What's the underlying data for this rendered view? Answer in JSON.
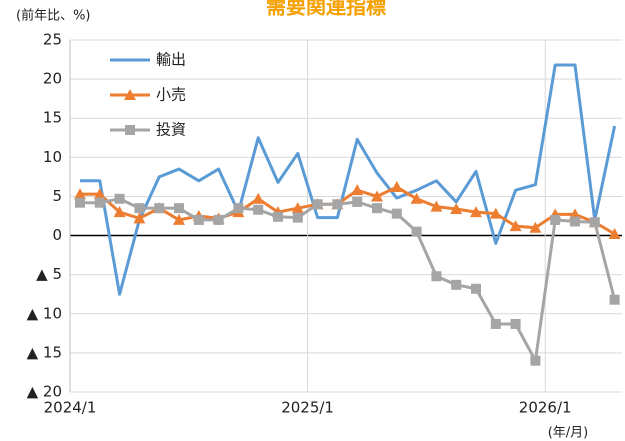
{
  "chart_data": {
    "type": "line",
    "title": "需要関連指標",
    "y_label": "(前年比、%)",
    "x_label": "(年/月)",
    "categories": [
      "2024/1",
      null,
      null,
      null,
      null,
      null,
      null,
      null,
      null,
      null,
      null,
      null,
      "2025/1",
      null,
      null,
      null,
      null,
      null,
      null,
      null,
      null,
      null,
      null,
      null,
      "2026/1",
      null,
      null,
      null
    ],
    "series": [
      {
        "name": "輸出",
        "color": "#5b9bd5",
        "marker": "none",
        "values": [
          7,
          7,
          -7.5,
          2,
          7.5,
          8.5,
          7,
          8.5,
          3,
          12.5,
          6.8,
          10.5,
          2.3,
          2.3,
          12.3,
          8,
          4.8,
          5.8,
          7,
          4.3,
          8.2,
          -1,
          5.8,
          6.5,
          21.8,
          21.8,
          2,
          14
        ]
      },
      {
        "name": "小売",
        "color": "#ed7d31",
        "marker": "triangle",
        "values": [
          5.3,
          5.3,
          3,
          2.2,
          3.5,
          2,
          2.5,
          2.2,
          3,
          4.7,
          3,
          3.5,
          4,
          4,
          5.8,
          5,
          6.2,
          4.7,
          3.7,
          3.4,
          3,
          2.8,
          1.2,
          1,
          2.7,
          2.7,
          1.7,
          0.2
        ]
      },
      {
        "name": "投資",
        "color": "#a5a5a5",
        "marker": "square",
        "values": [
          4.2,
          4.2,
          4.7,
          3.5,
          3.5,
          3.5,
          2,
          2,
          3.5,
          3.3,
          2.4,
          2.3,
          4,
          4,
          4.3,
          3.5,
          2.8,
          0.5,
          -5.2,
          -6.3,
          -6.8,
          -11.3,
          -11.3,
          -16,
          2,
          1.8,
          1.7,
          -8.2
        ]
      }
    ],
    "ylim": [
      -20,
      25
    ],
    "yticks": [
      {
        "value": -20,
        "label": "▲ 20"
      },
      {
        "value": -15,
        "label": "▲ 15"
      },
      {
        "value": -10,
        "label": "▲ 10"
      },
      {
        "value": -5,
        "label": "▲ 5"
      },
      0,
      5,
      10,
      15,
      20,
      25
    ],
    "grid": true,
    "legend": "upper left"
  }
}
